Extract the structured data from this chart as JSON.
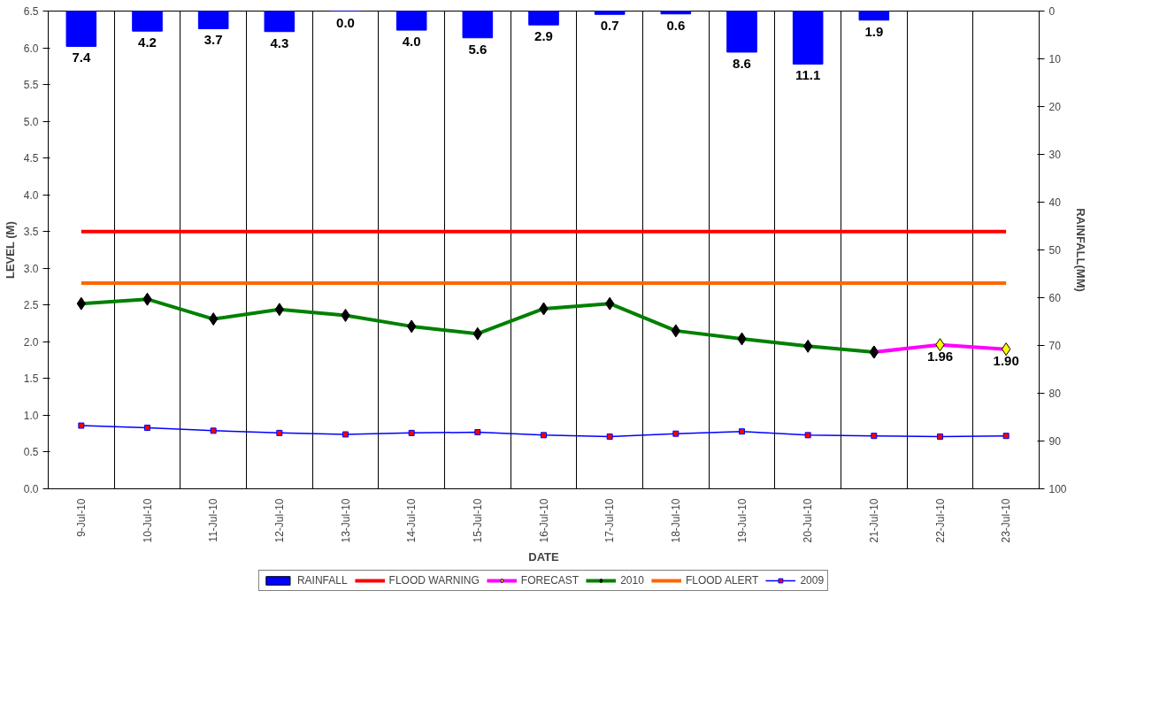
{
  "chart_data": {
    "type": "line",
    "xlabel": "DATE",
    "ylabel": "LEVEL (M)",
    "y2label": "RAINFALL(MM)",
    "categories": [
      "9-Jul-10",
      "10-Jul-10",
      "11-Jul-10",
      "12-Jul-10",
      "13-Jul-10",
      "14-Jul-10",
      "15-Jul-10",
      "16-Jul-10",
      "17-Jul-10",
      "18-Jul-10",
      "19-Jul-10",
      "20-Jul-10",
      "21-Jul-10",
      "22-Jul-10",
      "23-Jul-10"
    ],
    "series": [
      {
        "name": "RAINFALL",
        "type": "bar",
        "axis": "y2",
        "color": "#0000ff",
        "values": [
          7.4,
          4.2,
          3.7,
          4.3,
          0.0,
          4.0,
          5.6,
          2.9,
          0.7,
          0.6,
          8.6,
          11.1,
          1.9,
          null,
          null
        ],
        "value_labels": [
          "7.4",
          "4.2",
          "3.7",
          "4.3",
          "0.0",
          "4.0",
          "5.6",
          "2.9",
          "0.7",
          "0.6",
          "8.6",
          "11.1",
          "1.9",
          null,
          null
        ]
      },
      {
        "name": "FLOOD WARNING",
        "color": "#ff0000",
        "marker": "none",
        "values": [
          3.5,
          3.5,
          3.5,
          3.5,
          3.5,
          3.5,
          3.5,
          3.5,
          3.5,
          3.5,
          3.5,
          3.5,
          3.5,
          3.5,
          3.5
        ]
      },
      {
        "name": "FORECAST",
        "color": "#ff00ff",
        "marker": "diamond",
        "values": [
          null,
          null,
          null,
          null,
          null,
          null,
          null,
          null,
          null,
          null,
          null,
          null,
          1.86,
          1.96,
          1.9
        ],
        "value_labels": [
          null,
          null,
          null,
          null,
          null,
          null,
          null,
          null,
          null,
          null,
          null,
          null,
          null,
          "1.96",
          "1.90"
        ]
      },
      {
        "name": "2010",
        "color": "#008000",
        "marker": "diamond",
        "values": [
          2.52,
          2.58,
          2.31,
          2.44,
          2.36,
          2.21,
          2.11,
          2.45,
          2.52,
          2.15,
          2.04,
          1.94,
          1.86,
          null,
          null
        ]
      },
      {
        "name": "FLOOD ALERT",
        "color": "#ff6600",
        "marker": "none",
        "values": [
          2.8,
          2.8,
          2.8,
          2.8,
          2.8,
          2.8,
          2.8,
          2.8,
          2.8,
          2.8,
          2.8,
          2.8,
          2.8,
          2.8,
          2.8
        ]
      },
      {
        "name": "2009",
        "color": "#0000ff",
        "marker": "square",
        "values": [
          0.86,
          0.83,
          0.79,
          0.76,
          0.74,
          0.76,
          0.77,
          0.73,
          0.71,
          0.75,
          0.78,
          0.73,
          0.72,
          0.71,
          0.72
        ]
      }
    ],
    "ylim": [
      0,
      6.5
    ],
    "yticks": [
      {
        "value": 0,
        "label": "0.0"
      },
      {
        "value": 0.5,
        "label": "0.5"
      },
      {
        "value": 1,
        "label": "1.0"
      },
      {
        "value": 1.5,
        "label": "1.5"
      },
      {
        "value": 2,
        "label": "2.0"
      },
      {
        "value": 2.5,
        "label": "2.5"
      },
      {
        "value": 3,
        "label": "3.0"
      },
      {
        "value": 3.5,
        "label": "3.5"
      },
      {
        "value": 4,
        "label": "4.0"
      },
      {
        "value": 4.5,
        "label": "4.5"
      },
      {
        "value": 5,
        "label": "5.0"
      },
      {
        "value": 5.5,
        "label": "5.5"
      },
      {
        "value": 6,
        "label": "6.0"
      },
      {
        "value": 6.5,
        "label": "6.5"
      }
    ],
    "y2lim": [
      100,
      0
    ],
    "y2ticks": [
      0,
      10,
      20,
      30,
      40,
      50,
      60,
      70,
      80,
      90,
      100
    ],
    "grid": "x",
    "legend": "bottom"
  }
}
